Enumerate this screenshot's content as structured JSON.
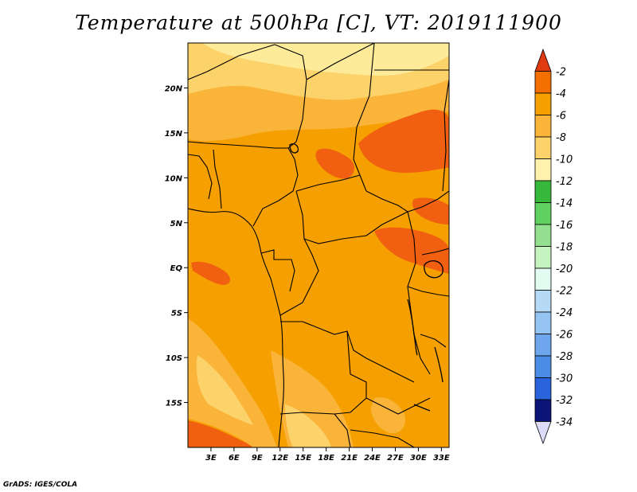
{
  "title": "Temperature at 500hPa [C], VT: 2019111900",
  "credit": "GrADS: IGES/COLA",
  "map": {
    "lon_range": [
      0,
      34
    ],
    "lat_range": [
      -20,
      25
    ],
    "lon_ticks": [
      {
        "value": 3,
        "label": "3E"
      },
      {
        "value": 6,
        "label": "6E"
      },
      {
        "value": 9,
        "label": "9E"
      },
      {
        "value": 12,
        "label": "12E"
      },
      {
        "value": 15,
        "label": "15E"
      },
      {
        "value": 18,
        "label": "18E"
      },
      {
        "value": 21,
        "label": "21E"
      },
      {
        "value": 24,
        "label": "24E"
      },
      {
        "value": 27,
        "label": "27E"
      },
      {
        "value": 30,
        "label": "30E"
      },
      {
        "value": 33,
        "label": "33E"
      }
    ],
    "lat_ticks": [
      {
        "value": 20,
        "label": "20N"
      },
      {
        "value": 15,
        "label": "15N"
      },
      {
        "value": 10,
        "label": "10N"
      },
      {
        "value": 5,
        "label": "5N"
      },
      {
        "value": 0,
        "label": "EQ"
      },
      {
        "value": -5,
        "label": "5S"
      },
      {
        "value": -10,
        "label": "10S"
      },
      {
        "value": -15,
        "label": "15S"
      }
    ],
    "field_colors": {
      "warmest": "#f06010",
      "warm": "#f5a000",
      "mid": "#fab43a",
      "light": "#fcd26a",
      "lightest": "#fdeb9a",
      "border_line": "#000000"
    }
  },
  "colorbar": {
    "levels": [
      {
        "label": "-2",
        "color": "#e03a10"
      },
      {
        "label": "-4",
        "color": "#f46e00"
      },
      {
        "label": "-6",
        "color": "#f5a000"
      },
      {
        "label": "-8",
        "color": "#fab43a"
      },
      {
        "label": "-10",
        "color": "#fcd26a"
      },
      {
        "label": "-12",
        "color": "#fff2ae"
      },
      {
        "label": "-14",
        "color": "#36b83a"
      },
      {
        "label": "-16",
        "color": "#60d060"
      },
      {
        "label": "-18",
        "color": "#94e090"
      },
      {
        "label": "-20",
        "color": "#c6f4c0"
      },
      {
        "label": "-22",
        "color": "#e2fcf2"
      },
      {
        "label": "-24",
        "color": "#b6daf6"
      },
      {
        "label": "-26",
        "color": "#96c4f2"
      },
      {
        "label": "-28",
        "color": "#6ea6ee"
      },
      {
        "label": "-30",
        "color": "#4a8ce6"
      },
      {
        "label": "-32",
        "color": "#2a64dc"
      },
      {
        "label": "-34",
        "color": "#1a44c8"
      }
    ],
    "top_color": "#e03a10",
    "bottom_color": "#0c1478",
    "bottom_tip_color": "#dcdcf8"
  }
}
